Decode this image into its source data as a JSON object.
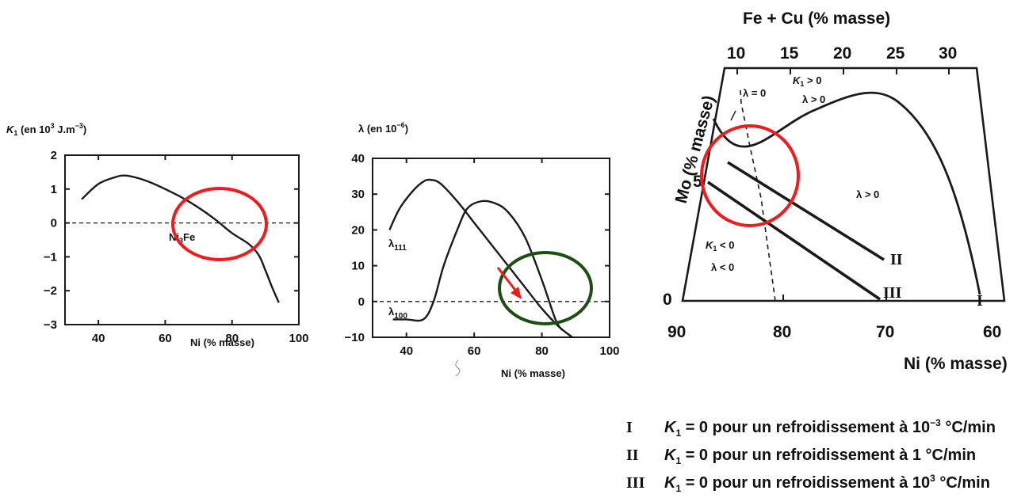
{
  "chart_data": [
    {
      "type": "line",
      "title": "",
      "ylabel": "K1 (en 10^3 J.m^-3)",
      "xlabel": "Ni (% masse)",
      "xlim": [
        30,
        100
      ],
      "ylim": [
        -3,
        2
      ],
      "xticks": [
        "40",
        "60",
        "80",
        "100"
      ],
      "yticks": [
        "2",
        "1",
        "0",
        "−1",
        "−2",
        "−3"
      ],
      "series": [
        {
          "x": [
            35,
            40,
            45,
            48,
            52,
            56,
            60,
            65,
            70,
            75,
            80,
            85,
            88,
            90,
            92,
            94
          ],
          "y": [
            0.7,
            1.15,
            1.35,
            1.4,
            1.32,
            1.18,
            1.0,
            0.75,
            0.45,
            0.1,
            -0.3,
            -0.62,
            -0.95,
            -1.4,
            -1.9,
            -2.35
          ]
        }
      ],
      "annotations": [
        "Ni3Fe"
      ],
      "zero_line": "dashed",
      "highlight": "red circle near Ni3Fe"
    },
    {
      "type": "line",
      "title": "",
      "ylabel": "λ (en 10^-6)",
      "xlabel": "Ni (% masse)",
      "xlim": [
        30,
        100
      ],
      "ylim": [
        -10,
        40
      ],
      "xticks": [
        "40",
        "60",
        "80",
        "100"
      ],
      "yticks": [
        "40",
        "30",
        "20",
        "10",
        "0",
        "−10"
      ],
      "series": [
        {
          "name": "λ111",
          "x": [
            35,
            38,
            42,
            45,
            47,
            50,
            55,
            60,
            65,
            70,
            75,
            80,
            85,
            89
          ],
          "y": [
            20,
            26,
            31,
            33.5,
            34,
            33,
            28,
            22,
            16,
            10,
            4,
            -2,
            -7,
            -10
          ]
        },
        {
          "name": "λ100",
          "x": [
            36,
            40,
            45,
            48,
            51,
            55,
            58,
            62,
            66,
            70,
            75,
            80,
            84,
            86
          ],
          "y": [
            -5,
            -5,
            -5,
            0,
            10,
            20,
            26,
            28,
            27.5,
            25,
            18,
            6,
            -5,
            -8
          ]
        }
      ],
      "zero_line": "dashed",
      "highlight": "green circle and red arrow near zero crossing"
    },
    {
      "type": "line",
      "title": "",
      "xlabel": "Ni (% masse)",
      "x2label": "Fe + Cu (% masse)",
      "ylabel": "Mo (% masse)",
      "xticks": [
        "90",
        "80",
        "70",
        "60"
      ],
      "x2ticks": [
        "10",
        "15",
        "20",
        "25",
        "30"
      ],
      "yticks": [
        "0",
        "5"
      ],
      "regions": [
        "λ = 0",
        "K1 > 0",
        "λ > 0",
        "λ > 0",
        "K1 < 0",
        "λ < 0"
      ],
      "series": [
        {
          "name": "I"
        },
        {
          "name": "II"
        },
        {
          "name": "III"
        }
      ],
      "highlight": "red circle near λ = 0 boundary"
    }
  ],
  "legend": [
    {
      "mark": "I",
      "k": "K",
      "sub": "1",
      "text": " = 0 pour un refroidissement à 10",
      "sup": "−3",
      "unit": " °C/min"
    },
    {
      "mark": "II",
      "k": "K",
      "sub": "1",
      "text": " = 0 pour un refroidissement à 1 °C/min",
      "sup": "",
      "unit": ""
    },
    {
      "mark": "III",
      "k": "K",
      "sub": "1",
      "text": " = 0 pour un refroidissement à 10",
      "sup": "3",
      "unit": " °C/min"
    }
  ],
  "colors": {
    "ink": "#1a1a1a",
    "red": "#ee1c1c",
    "green": "#1e4d14"
  }
}
